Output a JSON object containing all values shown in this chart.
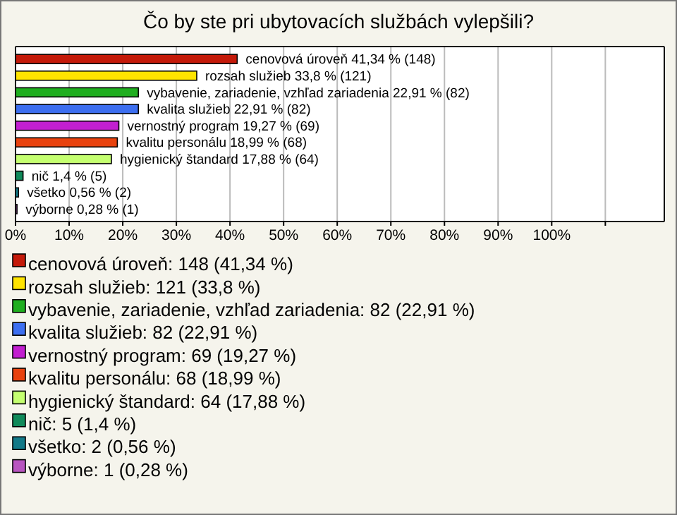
{
  "chart_data": {
    "type": "bar",
    "orientation": "horizontal",
    "stacked": true,
    "title": "Čo by ste pri ubytovacích službách vylepšili?",
    "categories": [
      null,
      null,
      null,
      null,
      null,
      null,
      null,
      null,
      null,
      null
    ],
    "series": [
      {
        "name": "cenovová úroveň: 148 (41,34 %)",
        "color": "#c41a0a",
        "values": [
          41.34,
          null,
          null,
          null,
          null,
          null,
          null,
          null,
          null,
          null
        ],
        "value_labels": [
          "cenovová úroveň 41,34 % (148)",
          null,
          null,
          null,
          null,
          null,
          null,
          null,
          null,
          null
        ]
      },
      {
        "name": "rozsah služieb: 121 (33,8 %)",
        "color": "#ffe400",
        "values": [
          null,
          33.8,
          null,
          null,
          null,
          null,
          null,
          null,
          null,
          null
        ],
        "value_labels": [
          null,
          "rozsah služieb 33,8 % (121)",
          null,
          null,
          null,
          null,
          null,
          null,
          null,
          null
        ]
      },
      {
        "name": "vybavenie, zariadenie, vzhľad zariadenia: 82 (22,91 %)",
        "color": "#1fae1f",
        "values": [
          null,
          null,
          22.91,
          null,
          null,
          null,
          null,
          null,
          null,
          null
        ],
        "value_labels": [
          null,
          null,
          "vybavenie, zariadenie, vzhľad zariadenia 22,91 % (82)",
          null,
          null,
          null,
          null,
          null,
          null,
          null
        ]
      },
      {
        "name": "kvalita služieb: 82 (22,91 %)",
        "color": "#3d6ff0",
        "values": [
          null,
          null,
          null,
          22.91,
          null,
          null,
          null,
          null,
          null,
          null
        ],
        "value_labels": [
          null,
          null,
          null,
          "kvalita služieb 22,91 % (82)",
          null,
          null,
          null,
          null,
          null,
          null
        ]
      },
      {
        "name": "vernostný program: 69 (19,27 %)",
        "color": "#c21fd0",
        "values": [
          null,
          null,
          null,
          null,
          19.27,
          null,
          null,
          null,
          null,
          null
        ],
        "value_labels": [
          null,
          null,
          null,
          null,
          "vernostný program 19,27 % (69)",
          null,
          null,
          null,
          null,
          null
        ]
      },
      {
        "name": "kvalitu personálu: 68 (18,99 %)",
        "color": "#e8420e",
        "values": [
          null,
          null,
          null,
          null,
          null,
          18.99,
          null,
          null,
          null,
          null
        ],
        "value_labels": [
          null,
          null,
          null,
          null,
          null,
          "kvalitu personálu 18,99 % (68)",
          null,
          null,
          null,
          null
        ]
      },
      {
        "name": "hygienický štandard: 64 (17,88 %)",
        "color": "#c4ff70",
        "values": [
          null,
          null,
          null,
          null,
          null,
          null,
          17.88,
          null,
          null,
          null
        ],
        "value_labels": [
          null,
          null,
          null,
          null,
          null,
          null,
          "hygienický štandard 17,88 % (64)",
          null,
          null,
          null
        ]
      },
      {
        "name": "nič: 5 (1,4 %)",
        "color": "#108a5a",
        "values": [
          null,
          null,
          null,
          null,
          null,
          null,
          null,
          1.4,
          null,
          null
        ],
        "value_labels": [
          null,
          null,
          null,
          null,
          null,
          null,
          null,
          "nič 1,4 % (5)",
          null,
          null
        ]
      },
      {
        "name": "všetko: 2 (0,56 %)",
        "color": "#137a88",
        "values": [
          null,
          null,
          null,
          null,
          null,
          null,
          null,
          null,
          0.56,
          null
        ],
        "value_labels": [
          null,
          null,
          null,
          null,
          null,
          null,
          null,
          null,
          "všetko 0,56 % (2)",
          null
        ]
      },
      {
        "name": "výborne: 1 (0,28 %)",
        "color": "#b855c0",
        "values": [
          null,
          null,
          null,
          null,
          null,
          null,
          null,
          null,
          null,
          0.28
        ],
        "value_labels": [
          null,
          null,
          null,
          null,
          null,
          null,
          null,
          null,
          null,
          "výborne 0,28 % (1)"
        ]
      }
    ],
    "xlim": [
      0,
      121
    ],
    "xticks": [
      {
        "value": 0,
        "label": "0%"
      },
      {
        "value": 10,
        "label": "10%"
      },
      {
        "value": 20,
        "label": "20%"
      },
      {
        "value": 30,
        "label": "30%"
      },
      {
        "value": 40,
        "label": "40%"
      },
      {
        "value": 50,
        "label": "50%"
      },
      {
        "value": 60,
        "label": "60%"
      },
      {
        "value": 70,
        "label": "70%"
      },
      {
        "value": 80,
        "label": "80%"
      },
      {
        "value": 90,
        "label": "90%"
      },
      {
        "value": 100,
        "label": "100%"
      },
      {
        "value": 110,
        "label": null
      }
    ],
    "grid": "x",
    "legend": "bottom",
    "tick_labels": "x"
  }
}
